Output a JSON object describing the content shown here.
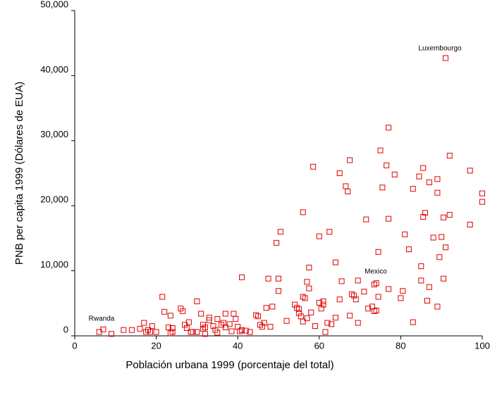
{
  "chart_data": {
    "type": "scatter",
    "x_label": "Población urbana 1999 (porcentaje del total)",
    "y_label": "PNB per capita 1999 (Dólares de EUA)",
    "annotations": [
      "Luxembourgo",
      "Rwanda",
      "Mexico"
    ],
    "color": "#e00000",
    "xlim": [
      0,
      100
    ],
    "ylim": [
      0,
      50000
    ],
    "xticks": [
      0,
      20,
      40,
      60,
      80,
      100
    ],
    "yticks": [
      0,
      {
        "value": 10000,
        "label": "10,000"
      },
      {
        "value": 20000,
        "label": "20,000"
      },
      {
        "value": 30000,
        "label": "30,000"
      },
      {
        "value": 40000,
        "label": "40,000"
      },
      {
        "value": 50000,
        "label": "50,000"
      }
    ],
    "x": [
      6,
      7,
      9,
      12,
      14,
      16,
      17,
      17.5,
      18,
      18.5,
      19,
      20,
      21.5,
      22,
      23,
      23.5,
      23.5,
      24,
      24,
      26,
      26.5,
      27,
      27.5,
      28,
      28.5,
      29,
      30,
      30,
      31,
      31.5,
      31.5,
      32,
      32,
      33,
      33,
      34,
      34.5,
      35,
      35,
      36,
      36.5,
      37,
      37,
      38,
      38.5,
      39,
      39.5,
      40,
      40.5,
      41,
      41,
      42,
      43,
      44.5,
      45,
      45.5,
      46,
      46.5,
      47,
      47.5,
      48,
      48.5,
      49.5,
      50,
      50,
      50.5,
      52,
      54,
      54.5,
      55,
      55,
      55.5,
      56,
      56,
      56,
      56.5,
      57,
      57,
      57.5,
      57.5,
      58,
      58.5,
      59,
      60,
      60,
      60.5,
      61,
      61,
      61.5,
      62,
      62.5,
      63,
      64,
      64,
      65,
      65,
      65.5,
      66.5,
      67,
      67.5,
      67.5,
      68,
      68.5,
      69,
      69.5,
      69.5,
      71,
      71.5,
      72,
      73,
      73.5,
      73.5,
      74,
      74,
      74.5,
      74.5,
      75,
      75.5,
      76.5,
      77,
      77,
      77,
      78.5,
      80,
      80.5,
      81,
      82,
      83,
      83,
      84.5,
      85,
      85,
      85.5,
      85.5,
      86,
      86.5,
      87,
      87,
      88,
      89,
      89,
      89,
      89.5,
      90,
      90.5,
      90.5,
      91,
      91,
      92,
      92,
      97,
      97,
      100,
      100
    ],
    "y": [
      600,
      1000,
      300,
      900,
      900,
      1100,
      2000,
      600,
      900,
      600,
      1500,
      600,
      6000,
      3700,
      1300,
      400,
      3100,
      1200,
      600,
      4200,
      3800,
      1700,
      1200,
      2100,
      600,
      600,
      600,
      5300,
      3400,
      1100,
      1700,
      1300,
      300,
      2800,
      2400,
      1500,
      900,
      2600,
      500,
      1700,
      2000,
      3400,
      1300,
      1800,
      700,
      3400,
      2600,
      1400,
      700,
      9000,
      900,
      800,
      600,
      3200,
      3000,
      1700,
      1400,
      2000,
      4300,
      8800,
      1400,
      4500,
      14300,
      8800,
      6900,
      16000,
      2300,
      4800,
      4300,
      4100,
      3500,
      3000,
      6000,
      19000,
      2200,
      5800,
      8300,
      2700,
      7300,
      10500,
      3600,
      26000,
      1500,
      15300,
      5100,
      4200,
      4800,
      5300,
      600,
      2000,
      16000,
      1800,
      11300,
      2800,
      25000,
      5600,
      8400,
      23000,
      22200,
      27000,
      3100,
      6400,
      6200,
      5600,
      2000,
      8500,
      6800,
      17900,
      4200,
      4500,
      3800,
      7900,
      8100,
      3900,
      6000,
      12900,
      28500,
      22800,
      26200,
      32000,
      18000,
      7200,
      24800,
      5800,
      6900,
      15600,
      13300,
      22600,
      2100,
      24500,
      10700,
      8500,
      18300,
      25800,
      18900,
      5400,
      23600,
      7500,
      15100,
      24100,
      22000,
      4500,
      12100,
      15200,
      8800,
      18200,
      13600,
      42700,
      27700,
      18600,
      25400,
      17100,
      21900,
      20600
    ]
  }
}
